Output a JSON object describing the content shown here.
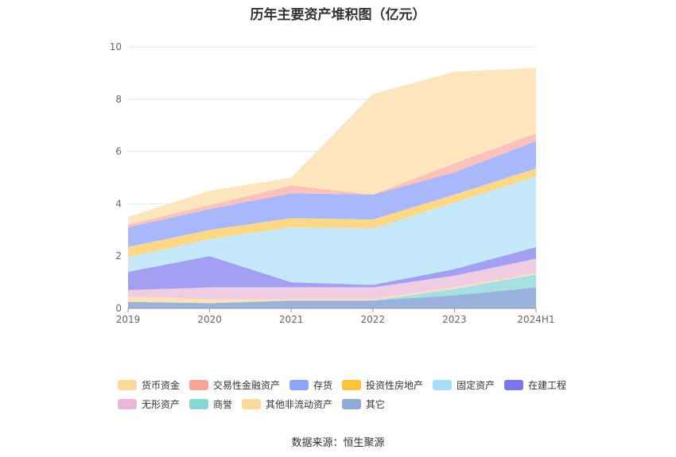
{
  "chart_data": {
    "type": "area",
    "stacked": true,
    "title": "历年主要资产堆积图（亿元）",
    "categories": [
      "2019",
      "2020",
      "2021",
      "2022",
      "2023",
      "2024H1"
    ],
    "ylim": [
      0,
      10
    ],
    "yticks": [
      0,
      2,
      4,
      6,
      8,
      10
    ],
    "grid": true,
    "legend_position": "bottom",
    "series": [
      {
        "name": "其它",
        "color": "#9bb3dc",
        "values": [
          0.25,
          0.2,
          0.3,
          0.3,
          0.5,
          0.8
        ]
      },
      {
        "name": "商誉",
        "color": "#a6e0e2",
        "values": [
          0.0,
          0.0,
          0.0,
          0.0,
          0.25,
          0.5
        ]
      },
      {
        "name": "其他非流动资产",
        "color": "#fde3b8",
        "values": [
          0.2,
          0.15,
          0.05,
          0.05,
          0.05,
          0.05
        ]
      },
      {
        "name": "无形资产",
        "color": "#f0cde3",
        "values": [
          0.25,
          0.45,
          0.45,
          0.45,
          0.45,
          0.55
        ]
      },
      {
        "name": "在建工程",
        "color": "#a3a0f3",
        "values": [
          0.7,
          1.2,
          0.2,
          0.1,
          0.25,
          0.45
        ]
      },
      {
        "name": "固定资产",
        "color": "#c5e9fb",
        "values": [
          0.55,
          0.65,
          2.1,
          2.15,
          2.55,
          2.7
        ]
      },
      {
        "name": "投资性房地产",
        "color": "#fed887",
        "values": [
          0.4,
          0.35,
          0.35,
          0.35,
          0.3,
          0.3
        ]
      },
      {
        "name": "存货",
        "color": "#a8b8fb",
        "values": [
          0.75,
          0.8,
          0.95,
          0.95,
          0.85,
          1.05
        ]
      },
      {
        "name": "交易性金融资产",
        "color": "#fbc1bc",
        "values": [
          0.1,
          0.15,
          0.3,
          0.0,
          0.35,
          0.3
        ]
      },
      {
        "name": "货币资金",
        "color": "#fde6bd",
        "values": [
          0.3,
          0.55,
          0.3,
          3.85,
          3.5,
          2.5
        ]
      }
    ]
  },
  "legend": {
    "row1": [
      {
        "label": "货币资金",
        "color": "#fdd99b"
      },
      {
        "label": "交易性金融资产",
        "color": "#f9a596"
      },
      {
        "label": "存货",
        "color": "#8fa5f7"
      },
      {
        "label": "投资性房地产",
        "color": "#fcc43c"
      },
      {
        "label": "固定资产",
        "color": "#a9defb"
      },
      {
        "label": "在建工程",
        "color": "#7a76ee"
      }
    ],
    "row2": [
      {
        "label": "无形资产",
        "color": "#e9b8d9"
      },
      {
        "label": "商誉",
        "color": "#86d6d8"
      },
      {
        "label": "其他非流动资产",
        "color": "#fdd99b"
      },
      {
        "label": "其它",
        "color": "#8fabd9"
      }
    ]
  },
  "source": "数据来源：恒生聚源"
}
